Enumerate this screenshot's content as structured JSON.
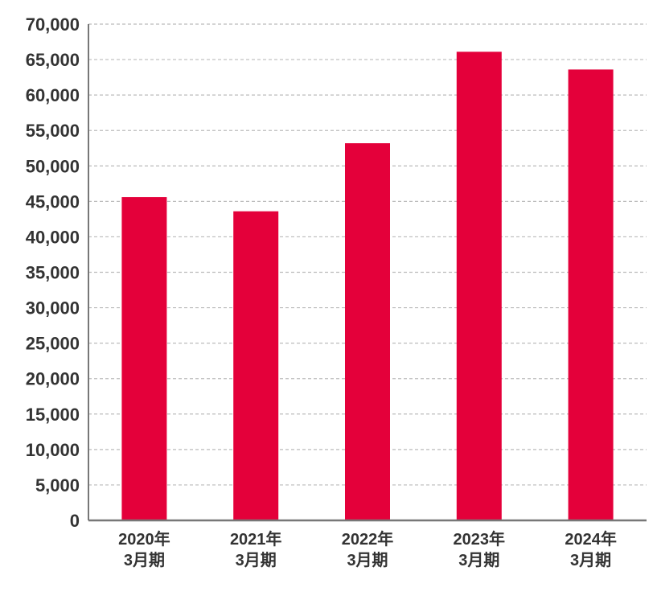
{
  "chart_data": {
    "type": "bar",
    "title": "",
    "xlabel": "",
    "ylabel": "",
    "categories": [
      [
        "2020年",
        "3月期"
      ],
      [
        "2021年",
        "3月期"
      ],
      [
        "2022年",
        "3月期"
      ],
      [
        "2023年",
        "3月期"
      ],
      [
        "2024年",
        "3月期"
      ]
    ],
    "values": [
      45600,
      43600,
      53200,
      66100,
      63600
    ],
    "ylim": [
      0,
      70000
    ],
    "yticks": [
      {
        "value": 0,
        "label": "0"
      },
      {
        "value": 5000,
        "label": "5,000"
      },
      {
        "value": 10000,
        "label": "10,000"
      },
      {
        "value": 15000,
        "label": "15,000"
      },
      {
        "value": 20000,
        "label": "20,000"
      },
      {
        "value": 25000,
        "label": "25,000"
      },
      {
        "value": 30000,
        "label": "30,000"
      },
      {
        "value": 35000,
        "label": "35,000"
      },
      {
        "value": 40000,
        "label": "40,000"
      },
      {
        "value": 45000,
        "label": "45,000"
      },
      {
        "value": 50000,
        "label": "50,000"
      },
      {
        "value": 55000,
        "label": "55,000"
      },
      {
        "value": 60000,
        "label": "60,000"
      },
      {
        "value": 65000,
        "label": "65,000"
      },
      {
        "value": 70000,
        "label": "70,000"
      }
    ],
    "grid": true,
    "bar_color": "#e4003a",
    "grid_color": "#bbbbbb",
    "axis_color": "#777777"
  }
}
